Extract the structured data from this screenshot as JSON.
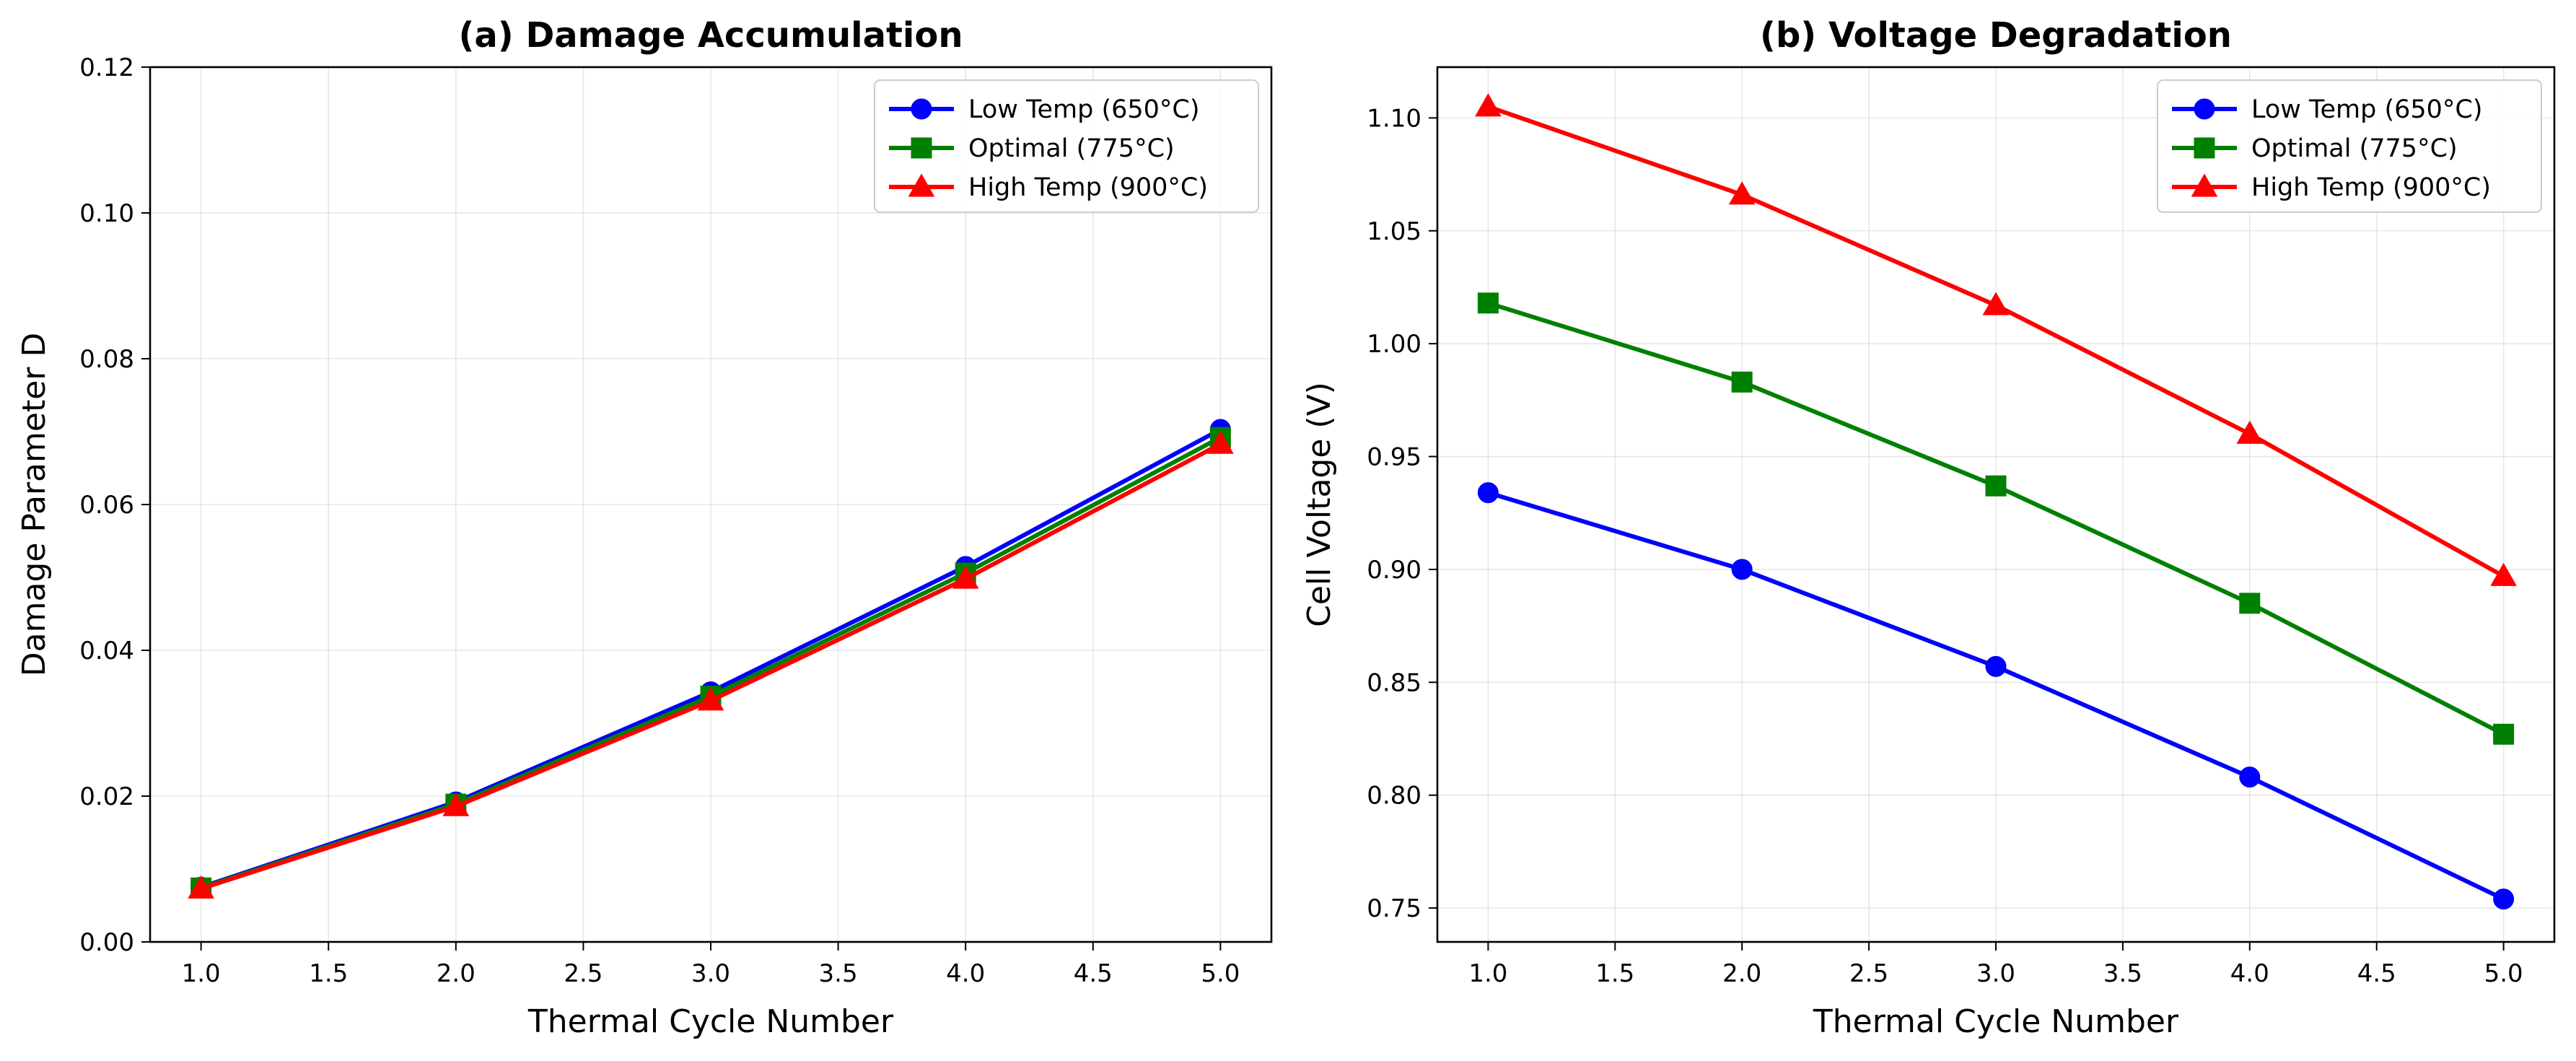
{
  "chart_data": [
    {
      "type": "line",
      "title": "(a) Damage Accumulation",
      "xlabel": "Thermal Cycle Number",
      "ylabel": "Damage Parameter D",
      "xlim": [
        0.8,
        5.2
      ],
      "ylim": [
        0.0,
        0.12
      ],
      "xticks": [
        "1.0",
        "1.5",
        "2.0",
        "2.5",
        "3.0",
        "3.5",
        "4.0",
        "4.5",
        "5.0"
      ],
      "yticks": [
        "0.00",
        "0.02",
        "0.04",
        "0.06",
        "0.08",
        "0.10",
        "0.12"
      ],
      "grid": true,
      "legend_position": "top-right",
      "x": [
        1,
        2,
        3,
        4,
        5
      ],
      "series": [
        {
          "name": "Low Temp (650°C)",
          "color": "#0000ff",
          "marker": "circle",
          "values": [
            0.0075,
            0.0192,
            0.0343,
            0.0515,
            0.0703
          ]
        },
        {
          "name": "Optimal (775°C)",
          "color": "#008000",
          "marker": "square",
          "values": [
            0.0074,
            0.0189,
            0.0337,
            0.0506,
            0.0692
          ]
        },
        {
          "name": "High Temp (900°C)",
          "color": "#ff0000",
          "marker": "triangle",
          "values": [
            0.0073,
            0.0186,
            0.0331,
            0.0498,
            0.0683
          ]
        }
      ]
    },
    {
      "type": "line",
      "title": "(b) Voltage Degradation",
      "xlabel": "Thermal Cycle Number",
      "ylabel": "Cell Voltage (V)",
      "xlim": [
        0.8,
        5.2
      ],
      "ylim": [
        0.735,
        1.1225
      ],
      "xticks": [
        "1.0",
        "1.5",
        "2.0",
        "2.5",
        "3.0",
        "3.5",
        "4.0",
        "4.5",
        "5.0"
      ],
      "yticks": [
        "0.75",
        "0.80",
        "0.85",
        "0.90",
        "0.95",
        "1.00",
        "1.05",
        "1.10"
      ],
      "grid": true,
      "legend_position": "top-right",
      "x": [
        1,
        2,
        3,
        4,
        5
      ],
      "series": [
        {
          "name": "Low Temp (650°C)",
          "color": "#0000ff",
          "marker": "circle",
          "values": [
            0.934,
            0.9,
            0.857,
            0.808,
            0.754
          ]
        },
        {
          "name": "Optimal (775°C)",
          "color": "#008000",
          "marker": "square",
          "values": [
            1.018,
            0.983,
            0.937,
            0.885,
            0.827
          ]
        },
        {
          "name": "High Temp (900°C)",
          "color": "#ff0000",
          "marker": "triangle",
          "values": [
            1.105,
            1.066,
            1.017,
            0.96,
            0.897
          ]
        }
      ]
    }
  ]
}
